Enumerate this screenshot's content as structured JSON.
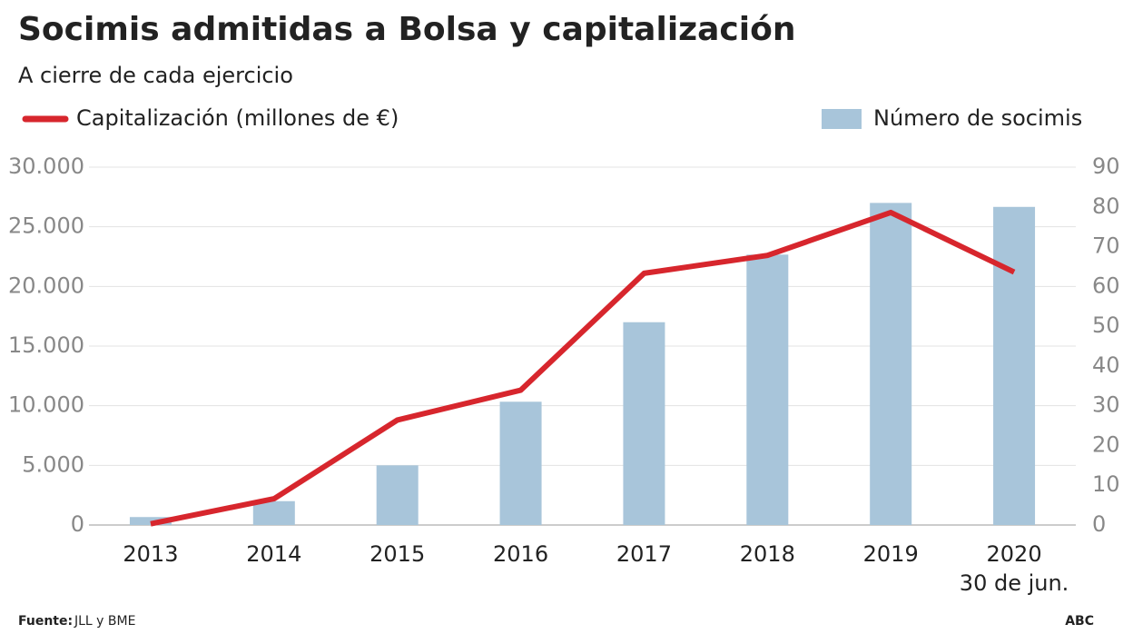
{
  "chart_data": {
    "type": "combo",
    "title": "Socimis admitidas a Bolsa y capitalización",
    "subtitle": "A cierre de cada ejercicio",
    "categories": [
      "2013",
      "2014",
      "2015",
      "2016",
      "2017",
      "2018",
      "2019",
      "2020"
    ],
    "category_note": "30 de jun.",
    "series": [
      {
        "name": "Capitalización (millones de €)",
        "type": "line",
        "color": "#d7262d",
        "axis": "y",
        "values": [
          100,
          2200,
          8800,
          11300,
          21100,
          22600,
          26200,
          21200
        ]
      },
      {
        "name": "Número de socimis",
        "type": "bar",
        "color": "#a8c5da",
        "axis": "y2",
        "values": [
          2,
          6,
          15,
          31,
          51,
          68,
          81,
          80
        ]
      }
    ],
    "ylim": [
      0,
      30000
    ],
    "yticks": [
      0,
      {
        "value": 5000,
        "label": "5.000"
      },
      {
        "value": 10000,
        "label": "10.000"
      },
      {
        "value": 15000,
        "label": "15.000"
      },
      {
        "value": 20000,
        "label": "20.000"
      },
      {
        "value": 25000,
        "label": "25.000"
      },
      {
        "value": 30000,
        "label": "30.000"
      }
    ],
    "y2lim": [
      0,
      90
    ],
    "y2ticks": [
      0,
      10,
      20,
      30,
      40,
      50,
      60,
      70,
      80,
      90
    ],
    "grid": true,
    "source_label": "Fuente:",
    "source": "JLL y BME",
    "credit": "ABC"
  }
}
